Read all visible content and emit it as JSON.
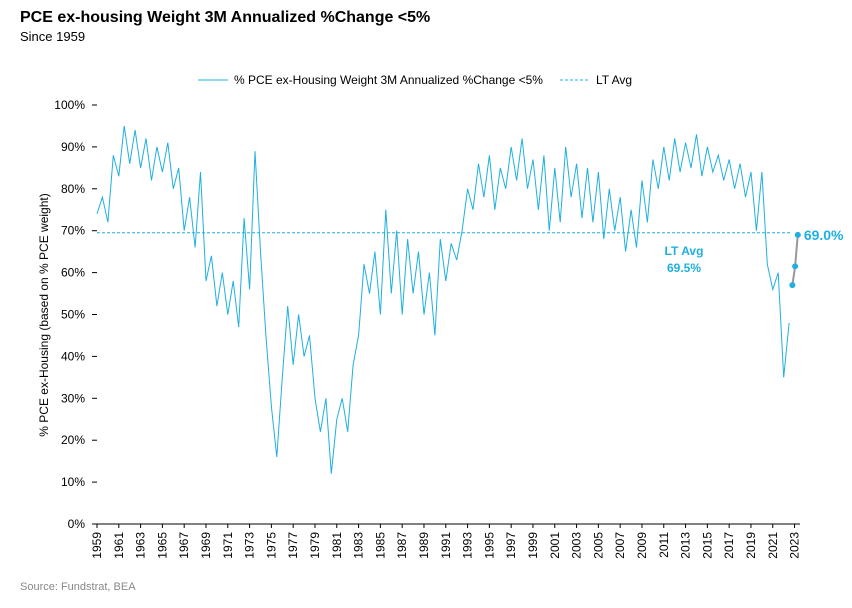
{
  "chart_data": {
    "type": "line",
    "title": "PCE ex-housing Weight 3M Annualized %Change <5%",
    "subtitle": "Since 1959",
    "y_label": "% PCE ex-Housing (based on % PCE weight)",
    "source": "Source: Fundstrat, BEA",
    "xlim": [
      1959,
      2023.5
    ],
    "xticks": [
      1959,
      1961,
      1963,
      1965,
      1967,
      1969,
      1971,
      1973,
      1975,
      1977,
      1979,
      1981,
      1983,
      1985,
      1987,
      1989,
      1991,
      1993,
      1995,
      1997,
      1999,
      2001,
      2003,
      2005,
      2007,
      2009,
      2011,
      2013,
      2015,
      2017,
      2019,
      2021,
      2023
    ],
    "ylim": [
      0,
      100
    ],
    "yticks": [
      {
        "value": 0,
        "label": "0%"
      },
      {
        "value": 10,
        "label": "10%"
      },
      {
        "value": 20,
        "label": "20%"
      },
      {
        "value": 30,
        "label": "30%"
      },
      {
        "value": 40,
        "label": "40%"
      },
      {
        "value": 50,
        "label": "50%"
      },
      {
        "value": 60,
        "label": "60%"
      },
      {
        "value": 70,
        "label": "70%"
      },
      {
        "value": 80,
        "label": "80%"
      },
      {
        "value": 90,
        "label": "90%"
      },
      {
        "value": 100,
        "label": "100%"
      }
    ],
    "legend": "top",
    "x": [
      1959,
      1959.5,
      1960,
      1960.5,
      1961,
      1961.5,
      1962,
      1962.5,
      1963,
      1963.5,
      1964,
      1964.5,
      1965,
      1965.5,
      1966,
      1966.5,
      1967,
      1967.5,
      1968,
      1968.5,
      1969,
      1969.5,
      1970,
      1970.5,
      1971,
      1971.5,
      1972,
      1972.5,
      1973,
      1973.5,
      1974,
      1974.5,
      1975,
      1975.5,
      1976,
      1976.5,
      1977,
      1977.5,
      1978,
      1978.5,
      1979,
      1979.5,
      1980,
      1980.5,
      1981,
      1981.5,
      1982,
      1982.5,
      1983,
      1983.5,
      1984,
      1984.5,
      1985,
      1985.5,
      1986,
      1986.5,
      1987,
      1987.5,
      1988,
      1988.5,
      1989,
      1989.5,
      1990,
      1990.5,
      1991,
      1991.5,
      1992,
      1992.5,
      1993,
      1993.5,
      1994,
      1994.5,
      1995,
      1995.5,
      1996,
      1996.5,
      1997,
      1997.5,
      1998,
      1998.5,
      1999,
      1999.5,
      2000,
      2000.5,
      2001,
      2001.5,
      2002,
      2002.5,
      2003,
      2003.5,
      2004,
      2004.5,
      2005,
      2005.5,
      2006,
      2006.5,
      2007,
      2007.5,
      2008,
      2008.5,
      2009,
      2009.5,
      2010,
      2010.5,
      2011,
      2011.5,
      2012,
      2012.5,
      2013,
      2013.5,
      2014,
      2014.5,
      2015,
      2015.5,
      2016,
      2016.5,
      2017,
      2017.5,
      2018,
      2018.5,
      2019,
      2019.5,
      2020,
      2020.5,
      2021,
      2021.5,
      2022,
      2022.5
    ],
    "series": [
      {
        "name": "% PCE ex-Housing Weight 3M Annualized %Change <5%",
        "color": "#1fb0e0",
        "values": [
          74,
          78,
          72,
          88,
          83,
          95,
          86,
          94,
          85,
          92,
          82,
          90,
          84,
          91,
          80,
          85,
          70,
          78,
          66,
          84,
          58,
          64,
          52,
          60,
          50,
          58,
          47,
          73,
          56,
          89,
          65,
          45,
          28,
          16,
          35,
          52,
          38,
          50,
          40,
          45,
          30,
          22,
          30,
          12,
          25,
          30,
          22,
          38,
          45,
          62,
          55,
          65,
          50,
          75,
          55,
          70,
          50,
          68,
          55,
          65,
          50,
          60,
          45,
          68,
          58,
          67,
          63,
          70,
          80,
          75,
          86,
          78,
          88,
          75,
          85,
          80,
          90,
          82,
          92,
          80,
          87,
          75,
          88,
          70,
          85,
          72,
          90,
          78,
          86,
          73,
          85,
          72,
          84,
          68,
          80,
          70,
          78,
          65,
          75,
          66,
          82,
          72,
          87,
          80,
          90,
          82,
          92,
          84,
          91,
          85,
          93,
          83,
          90,
          84,
          88,
          82,
          87,
          80,
          86,
          78,
          84,
          70,
          84,
          62,
          56,
          60,
          35,
          48
        ]
      }
    ],
    "lt_avg": {
      "name": "LT Avg",
      "value": 69.5,
      "value_label": "69.5%",
      "color": "#1fb0e0"
    },
    "recent": {
      "x": [
        2022.8,
        2023.05,
        2023.3
      ],
      "values": [
        57,
        61.5,
        69.0
      ],
      "last_label": "69.0%",
      "line_color": "#999999",
      "color": "#1fb0e0"
    }
  }
}
